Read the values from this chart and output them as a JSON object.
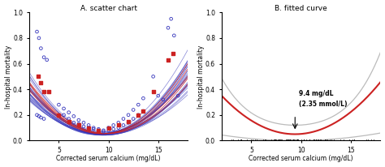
{
  "title_left": "A. scatter chart",
  "title_right": "B. fitted curve",
  "xlabel": "Corrected serum calcium (mg/dL)",
  "ylabel": "In-hospital mortality",
  "xlim": [
    2,
    18
  ],
  "ylim": [
    0.0,
    1.0
  ],
  "xticks": [
    5,
    10,
    15
  ],
  "yticks": [
    0.0,
    0.2,
    0.4,
    0.6,
    0.8,
    1.0
  ],
  "annotation_label1": "9.4 mg/dL",
  "annotation_label2": "(2.35 mmol/L)",
  "bg_color": "#ffffff",
  "scatter_blue_color": "#3333bb",
  "scatter_red_color": "#cc2222",
  "curve_red_color": "#cc2222",
  "curve_ci_color": "#bbbbbb"
}
